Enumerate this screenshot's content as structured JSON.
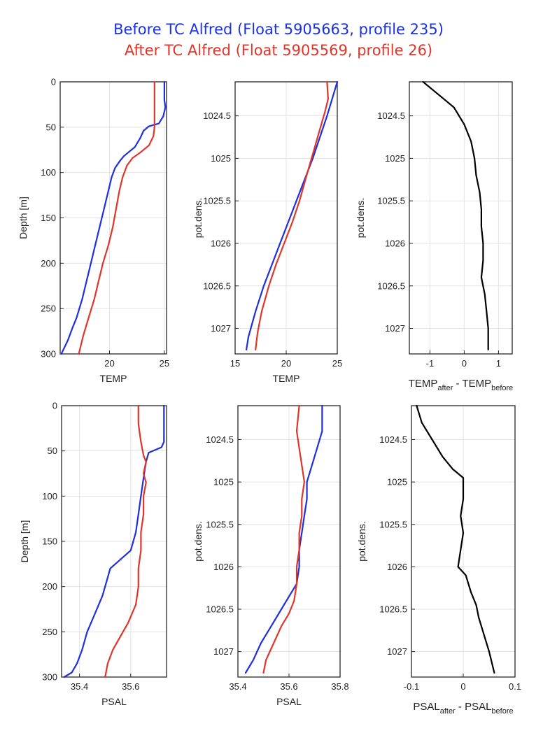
{
  "titles": {
    "before": "Before TC Alfred (Float 5905663, profile 235)",
    "after": "After TC Alfred (Float 5905569, profile 26)"
  },
  "colors": {
    "before": "#1f2fe0",
    "after": "#e0352b",
    "difference": "#000000"
  },
  "chart_data": [
    {
      "type": "line",
      "xlabel": "TEMP",
      "ylabel": "Depth [m]",
      "yreverse": true,
      "xlim": [
        15.5,
        25.2
      ],
      "ylim": [
        0,
        300
      ],
      "xticks": [
        20,
        25
      ],
      "xticklabels": [
        "20",
        "25"
      ],
      "yticks": [
        0,
        50,
        100,
        150,
        200,
        250,
        300
      ],
      "yticklabels": [
        "0",
        "50",
        "100",
        "150",
        "200",
        "250",
        "300"
      ],
      "series": [
        {
          "name": "Before",
          "color": "before",
          "points": [
            [
              25.0,
              0
            ],
            [
              25.0,
              20
            ],
            [
              25.1,
              28
            ],
            [
              24.9,
              38
            ],
            [
              24.5,
              46
            ],
            [
              23.6,
              49
            ],
            [
              23.1,
              54
            ],
            [
              22.8,
              62
            ],
            [
              22.3,
              72
            ],
            [
              21.8,
              77
            ],
            [
              21.3,
              82
            ],
            [
              20.9,
              88
            ],
            [
              20.5,
              95
            ],
            [
              20.2,
              105
            ],
            [
              19.9,
              120
            ],
            [
              19.5,
              140
            ],
            [
              19.1,
              160
            ],
            [
              18.7,
              180
            ],
            [
              18.3,
              200
            ],
            [
              17.9,
              220
            ],
            [
              17.5,
              240
            ],
            [
              17.0,
              260
            ],
            [
              16.6,
              272
            ],
            [
              16.2,
              285
            ],
            [
              15.6,
              300
            ]
          ]
        },
        {
          "name": "After",
          "color": "after",
          "points": [
            [
              24.1,
              0
            ],
            [
              24.1,
              30
            ],
            [
              24.1,
              50
            ],
            [
              24.0,
              60
            ],
            [
              23.6,
              70
            ],
            [
              22.8,
              78
            ],
            [
              22.1,
              84
            ],
            [
              21.6,
              92
            ],
            [
              21.2,
              105
            ],
            [
              20.9,
              120
            ],
            [
              20.6,
              140
            ],
            [
              20.3,
              160
            ],
            [
              19.9,
              180
            ],
            [
              19.4,
              200
            ],
            [
              19.0,
              220
            ],
            [
              18.6,
              240
            ],
            [
              18.1,
              260
            ],
            [
              17.6,
              280
            ],
            [
              17.2,
              300
            ]
          ]
        }
      ]
    },
    {
      "type": "line",
      "xlabel": "TEMP",
      "ylabel": "pot.dens.",
      "yreverse": true,
      "xlim": [
        15,
        25
      ],
      "ylim": [
        1024.1,
        1027.3
      ],
      "xticks": [
        15,
        20,
        25
      ],
      "xticklabels": [
        "15",
        "20",
        "25"
      ],
      "yticks": [
        1024.5,
        1025,
        1025.5,
        1026,
        1026.5,
        1027
      ],
      "yticklabels": [
        "1024.5",
        "1025",
        "1025.5",
        "1026",
        "1026.5",
        "1027"
      ],
      "series": [
        {
          "name": "Before",
          "color": "before",
          "points": [
            [
              25.0,
              1024.1
            ],
            [
              24.5,
              1024.3
            ],
            [
              24.0,
              1024.5
            ],
            [
              23.3,
              1024.75
            ],
            [
              22.6,
              1025.0
            ],
            [
              21.8,
              1025.25
            ],
            [
              21.0,
              1025.5
            ],
            [
              20.2,
              1025.75
            ],
            [
              19.4,
              1026.0
            ],
            [
              18.6,
              1026.25
            ],
            [
              17.8,
              1026.5
            ],
            [
              17.0,
              1026.8
            ],
            [
              16.3,
              1027.1
            ],
            [
              16.1,
              1027.25
            ]
          ]
        },
        {
          "name": "After",
          "color": "after",
          "points": [
            [
              24.0,
              1024.1
            ],
            [
              24.1,
              1024.3
            ],
            [
              23.8,
              1024.45
            ],
            [
              23.2,
              1024.7
            ],
            [
              22.6,
              1024.95
            ],
            [
              22.0,
              1025.2
            ],
            [
              21.3,
              1025.5
            ],
            [
              20.6,
              1025.75
            ],
            [
              19.8,
              1026.0
            ],
            [
              19.0,
              1026.25
            ],
            [
              18.3,
              1026.5
            ],
            [
              17.6,
              1026.8
            ],
            [
              17.2,
              1027.05
            ],
            [
              17.0,
              1027.25
            ]
          ]
        }
      ]
    },
    {
      "type": "line",
      "xlabel": "TEMP_after - TEMP_before",
      "ylabel": "pot.dens.",
      "yreverse": true,
      "xlim": [
        -1.6,
        1.4
      ],
      "ylim": [
        1024.1,
        1027.3
      ],
      "xticks": [
        -1,
        0,
        1
      ],
      "xticklabels": [
        "-1",
        "0",
        "1"
      ],
      "yticks": [
        1024.5,
        1025,
        1025.5,
        1026,
        1026.5,
        1027
      ],
      "yticklabels": [
        "1024.5",
        "1025",
        "1025.5",
        "1026",
        "1026.5",
        "1027"
      ],
      "series": [
        {
          "name": "Difference",
          "color": "difference",
          "points": [
            [
              -1.2,
              1024.1
            ],
            [
              -0.9,
              1024.2
            ],
            [
              -0.6,
              1024.3
            ],
            [
              -0.3,
              1024.4
            ],
            [
              0.0,
              1024.6
            ],
            [
              0.2,
              1024.8
            ],
            [
              0.3,
              1025.0
            ],
            [
              0.35,
              1025.2
            ],
            [
              0.45,
              1025.4
            ],
            [
              0.5,
              1025.6
            ],
            [
              0.5,
              1025.8
            ],
            [
              0.55,
              1026.0
            ],
            [
              0.55,
              1026.2
            ],
            [
              0.5,
              1026.4
            ],
            [
              0.6,
              1026.6
            ],
            [
              0.65,
              1026.8
            ],
            [
              0.7,
              1027.0
            ],
            [
              0.7,
              1027.25
            ]
          ]
        }
      ]
    },
    {
      "type": "line",
      "xlabel": "PSAL",
      "ylabel": "Depth [m]",
      "yreverse": true,
      "xlim": [
        35.33,
        35.74
      ],
      "ylim": [
        0,
        300
      ],
      "xticks": [
        35.4,
        35.6
      ],
      "xticklabels": [
        "35.4",
        "35.6"
      ],
      "yticks": [
        0,
        50,
        100,
        150,
        200,
        250,
        300
      ],
      "yticklabels": [
        "0",
        "50",
        "100",
        "150",
        "200",
        "250",
        "300"
      ],
      "series": [
        {
          "name": "Before",
          "color": "before",
          "points": [
            [
              35.73,
              0
            ],
            [
              35.73,
              40
            ],
            [
              35.72,
              46
            ],
            [
              35.67,
              52
            ],
            [
              35.66,
              62
            ],
            [
              35.65,
              80
            ],
            [
              35.64,
              100
            ],
            [
              35.63,
              120
            ],
            [
              35.62,
              140
            ],
            [
              35.6,
              160
            ],
            [
              35.56,
              170
            ],
            [
              35.52,
              180
            ],
            [
              35.51,
              190
            ],
            [
              35.49,
              210
            ],
            [
              35.46,
              230
            ],
            [
              35.43,
              250
            ],
            [
              35.41,
              270
            ],
            [
              35.39,
              285
            ],
            [
              35.37,
              295
            ],
            [
              35.34,
              300
            ]
          ]
        },
        {
          "name": "After",
          "color": "after",
          "points": [
            [
              35.63,
              0
            ],
            [
              35.63,
              20
            ],
            [
              35.64,
              40
            ],
            [
              35.65,
              55
            ],
            [
              35.66,
              62
            ],
            [
              35.65,
              75
            ],
            [
              35.66,
              85
            ],
            [
              35.65,
              100
            ],
            [
              35.65,
              120
            ],
            [
              35.64,
              140
            ],
            [
              35.64,
              160
            ],
            [
              35.63,
              180
            ],
            [
              35.63,
              200
            ],
            [
              35.62,
              220
            ],
            [
              35.59,
              240
            ],
            [
              35.56,
              255
            ],
            [
              35.53,
              270
            ],
            [
              35.51,
              285
            ],
            [
              35.5,
              300
            ]
          ]
        }
      ]
    },
    {
      "type": "line",
      "xlabel": "PSAL",
      "ylabel": "pot.dens.",
      "yreverse": true,
      "xlim": [
        35.4,
        35.8
      ],
      "ylim": [
        1024.1,
        1027.3
      ],
      "xticks": [
        35.4,
        35.6,
        35.8
      ],
      "xticklabels": [
        "35.4",
        "35.6",
        "35.8"
      ],
      "yticks": [
        1024.5,
        1025,
        1025.5,
        1026,
        1026.5,
        1027
      ],
      "yticklabels": [
        "1024.5",
        "1025",
        "1025.5",
        "1026",
        "1026.5",
        "1027"
      ],
      "series": [
        {
          "name": "Before",
          "color": "before",
          "points": [
            [
              35.73,
              1024.1
            ],
            [
              35.73,
              1024.4
            ],
            [
              35.71,
              1024.6
            ],
            [
              35.69,
              1024.8
            ],
            [
              35.67,
              1025.0
            ],
            [
              35.67,
              1025.2
            ],
            [
              35.66,
              1025.4
            ],
            [
              35.65,
              1025.6
            ],
            [
              35.64,
              1025.8
            ],
            [
              35.64,
              1026.0
            ],
            [
              35.63,
              1026.2
            ],
            [
              35.6,
              1026.35
            ],
            [
              35.57,
              1026.5
            ],
            [
              35.53,
              1026.7
            ],
            [
              35.49,
              1026.9
            ],
            [
              35.46,
              1027.1
            ],
            [
              35.43,
              1027.25
            ]
          ]
        },
        {
          "name": "After",
          "color": "after",
          "points": [
            [
              35.64,
              1024.1
            ],
            [
              35.63,
              1024.4
            ],
            [
              35.64,
              1024.6
            ],
            [
              35.65,
              1024.8
            ],
            [
              35.66,
              1025.0
            ],
            [
              35.65,
              1025.2
            ],
            [
              35.65,
              1025.4
            ],
            [
              35.64,
              1025.6
            ],
            [
              35.64,
              1025.8
            ],
            [
              35.63,
              1026.0
            ],
            [
              35.63,
              1026.2
            ],
            [
              35.62,
              1026.4
            ],
            [
              35.6,
              1026.55
            ],
            [
              35.57,
              1026.7
            ],
            [
              35.54,
              1026.9
            ],
            [
              35.51,
              1027.1
            ],
            [
              35.5,
              1027.25
            ]
          ]
        }
      ]
    },
    {
      "type": "line",
      "xlabel": "PSAL_after - PSAL_before",
      "ylabel": "pot.dens.",
      "yreverse": true,
      "xlim": [
        -0.1,
        0.1
      ],
      "ylim": [
        1024.1,
        1027.3
      ],
      "xticks": [
        -0.1,
        0,
        0.1
      ],
      "xticklabels": [
        "-0.1",
        "0",
        "0.1"
      ],
      "yticks": [
        1024.5,
        1025,
        1025.5,
        1026,
        1026.5,
        1027
      ],
      "yticklabels": [
        "1024.5",
        "1025",
        "1025.5",
        "1026",
        "1026.5",
        "1027"
      ],
      "series": [
        {
          "name": "Difference",
          "color": "difference",
          "points": [
            [
              -0.09,
              1024.1
            ],
            [
              -0.08,
              1024.3
            ],
            [
              -0.06,
              1024.5
            ],
            [
              -0.04,
              1024.7
            ],
            [
              -0.02,
              1024.85
            ],
            [
              0.0,
              1024.95
            ],
            [
              0.0,
              1025.2
            ],
            [
              -0.005,
              1025.4
            ],
            [
              0.0,
              1025.6
            ],
            [
              -0.005,
              1025.8
            ],
            [
              -0.01,
              1026.0
            ],
            [
              0.005,
              1026.1
            ],
            [
              0.015,
              1026.3
            ],
            [
              0.025,
              1026.45
            ],
            [
              0.03,
              1026.6
            ],
            [
              0.04,
              1026.8
            ],
            [
              0.05,
              1027.0
            ],
            [
              0.06,
              1027.25
            ]
          ]
        }
      ]
    }
  ]
}
